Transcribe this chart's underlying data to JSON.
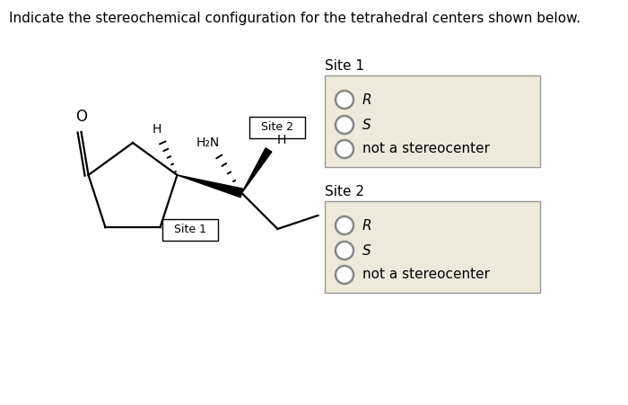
{
  "title": "Indicate the stereochemical configuration for the tetrahedral centers shown below.",
  "title_fontsize": 11,
  "background_color": "#ffffff",
  "box_color": "#edeadb",
  "box_edge_color": "#999999",
  "site1_label": "Site 1",
  "site2_label": "Site 2",
  "options": [
    "R",
    "S",
    "not a stereocenter"
  ],
  "circle_color": "#888888",
  "text_color": "#000000",
  "italic_labels": [
    "R",
    "S"
  ]
}
